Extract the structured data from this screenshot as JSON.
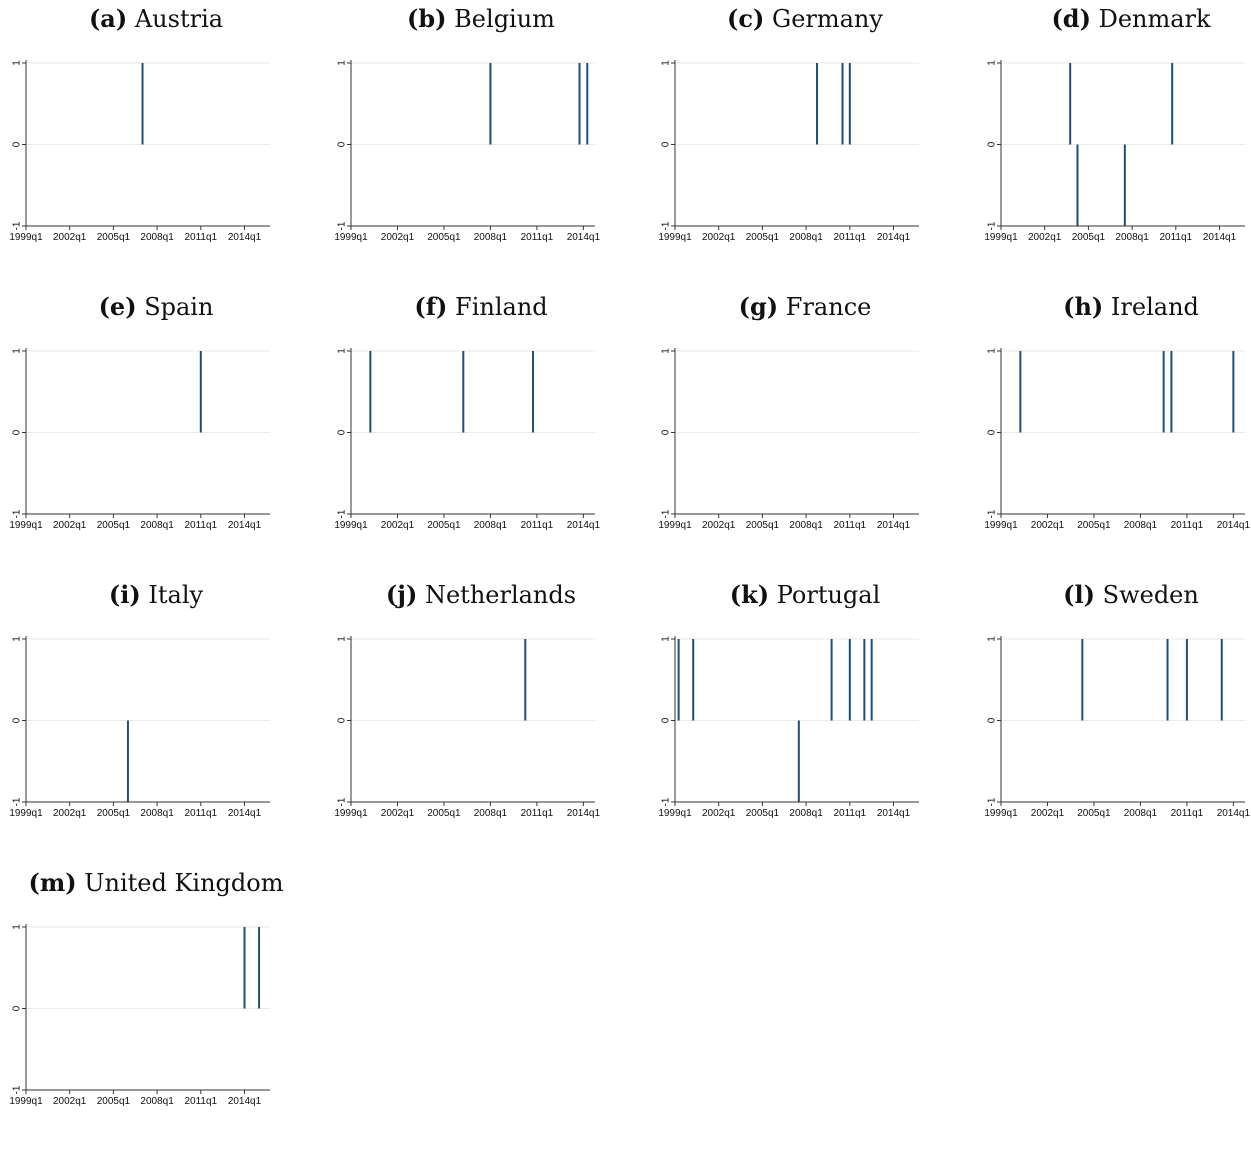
{
  "chart_data": [
    {
      "type": "bar",
      "label": "(a)",
      "title": "Austria",
      "x_ticks": [
        "1999q1",
        "2002q1",
        "2005q1",
        "2008q1",
        "2011q1",
        "2014q1"
      ],
      "y_ticks": [
        "-1",
        "0",
        "1"
      ],
      "ylim": [
        -1,
        1
      ],
      "x_range": [
        "1999q1",
        "2015q4"
      ],
      "events": [
        {
          "x": "2007q1",
          "value": 1
        }
      ]
    },
    {
      "type": "bar",
      "label": "(b)",
      "title": "Belgium",
      "x_ticks": [
        "1999q1",
        "2002q1",
        "2005q1",
        "2008q1",
        "2011q1",
        "2014q1"
      ],
      "y_ticks": [
        "-1",
        "0",
        "1"
      ],
      "ylim": [
        -1,
        1
      ],
      "x_range": [
        "1999q1",
        "2014q4"
      ],
      "events": [
        {
          "x": "2008q1",
          "value": 1
        },
        {
          "x": "2013q4",
          "value": 1
        },
        {
          "x": "2014q2",
          "value": 1
        }
      ]
    },
    {
      "type": "bar",
      "label": "(c)",
      "title": "Germany",
      "x_ticks": [
        "1999q1",
        "2002q1",
        "2005q1",
        "2008q1",
        "2011q1",
        "2014q1"
      ],
      "y_ticks": [
        "-1",
        "0",
        "1"
      ],
      "ylim": [
        -1,
        1
      ],
      "x_range": [
        "1999q1",
        "2015q4"
      ],
      "events": [
        {
          "x": "2008q4",
          "value": 1
        },
        {
          "x": "2010q3",
          "value": 1
        },
        {
          "x": "2011q1",
          "value": 1
        }
      ]
    },
    {
      "type": "bar",
      "label": "(d)",
      "title": "Denmark",
      "x_ticks": [
        "1999q1",
        "2002q1",
        "2005q1",
        "2008q1",
        "2011q1",
        "2014q1"
      ],
      "y_ticks": [
        "-1",
        "0",
        "1"
      ],
      "ylim": [
        -1,
        1
      ],
      "x_range": [
        "1999q1",
        "2015q4"
      ],
      "events": [
        {
          "x": "2003q4",
          "value": 1
        },
        {
          "x": "2004q2",
          "value": -1
        },
        {
          "x": "2007q3",
          "value": -1
        },
        {
          "x": "2010q4",
          "value": 1
        }
      ]
    },
    {
      "type": "bar",
      "label": "(e)",
      "title": "Spain",
      "x_ticks": [
        "1999q1",
        "2002q1",
        "2005q1",
        "2008q1",
        "2011q1",
        "2014q1"
      ],
      "y_ticks": [
        "-1",
        "0",
        "1"
      ],
      "ylim": [
        -1,
        1
      ],
      "x_range": [
        "1999q1",
        "2015q4"
      ],
      "events": [
        {
          "x": "2011q1",
          "value": 1
        }
      ]
    },
    {
      "type": "bar",
      "label": "(f)",
      "title": "Finland",
      "x_ticks": [
        "1999q1",
        "2002q1",
        "2005q1",
        "2008q1",
        "2011q1",
        "2014q1"
      ],
      "y_ticks": [
        "-1",
        "0",
        "1"
      ],
      "ylim": [
        -1,
        1
      ],
      "x_range": [
        "1999q1",
        "2014q4"
      ],
      "events": [
        {
          "x": "2000q2",
          "value": 1
        },
        {
          "x": "2006q2",
          "value": 1
        },
        {
          "x": "2010q4",
          "value": 1
        }
      ]
    },
    {
      "type": "bar",
      "label": "(g)",
      "title": "France",
      "x_ticks": [
        "1999q1",
        "2002q1",
        "2005q1",
        "2008q1",
        "2011q1",
        "2014q1"
      ],
      "y_ticks": [
        "-1",
        "0",
        "1"
      ],
      "ylim": [
        -1,
        1
      ],
      "x_range": [
        "1999q1",
        "2015q4"
      ],
      "events": []
    },
    {
      "type": "bar",
      "label": "(h)",
      "title": "Ireland",
      "x_ticks": [
        "1999q1",
        "2002q1",
        "2005q1",
        "2008q1",
        "2011q1",
        "2014q1"
      ],
      "y_ticks": [
        "-1",
        "0",
        "1"
      ],
      "ylim": [
        -1,
        1
      ],
      "x_range": [
        "1999q1",
        "2014q4"
      ],
      "events": [
        {
          "x": "2000q2",
          "value": 1
        },
        {
          "x": "2009q3",
          "value": 1
        },
        {
          "x": "2010q1",
          "value": 1
        },
        {
          "x": "2014q1",
          "value": 1
        }
      ]
    },
    {
      "type": "bar",
      "label": "(i)",
      "title": "Italy",
      "x_ticks": [
        "1999q1",
        "2002q1",
        "2005q1",
        "2008q1",
        "2011q1",
        "2014q1"
      ],
      "y_ticks": [
        "-1",
        "0",
        "1"
      ],
      "ylim": [
        -1,
        1
      ],
      "x_range": [
        "1999q1",
        "2015q4"
      ],
      "events": [
        {
          "x": "2006q1",
          "value": -1
        }
      ]
    },
    {
      "type": "bar",
      "label": "(j)",
      "title": "Netherlands",
      "x_ticks": [
        "1999q1",
        "2002q1",
        "2005q1",
        "2008q1",
        "2011q1",
        "2014q1"
      ],
      "y_ticks": [
        "-1",
        "0",
        "1"
      ],
      "ylim": [
        -1,
        1
      ],
      "x_range": [
        "1999q1",
        "2014q4"
      ],
      "events": [
        {
          "x": "2010q2",
          "value": 1
        }
      ]
    },
    {
      "type": "bar",
      "label": "(k)",
      "title": "Portugal",
      "x_ticks": [
        "1999q1",
        "2002q1",
        "2005q1",
        "2008q1",
        "2011q1",
        "2014q1"
      ],
      "y_ticks": [
        "-1",
        "0",
        "1"
      ],
      "ylim": [
        -1,
        1
      ],
      "x_range": [
        "1999q1",
        "2015q4"
      ],
      "events": [
        {
          "x": "1999q2",
          "value": 1
        },
        {
          "x": "2000q2",
          "value": 1
        },
        {
          "x": "2007q3",
          "value": -1
        },
        {
          "x": "2009q4",
          "value": 1
        },
        {
          "x": "2011q1",
          "value": 1
        },
        {
          "x": "2012q1",
          "value": 1
        },
        {
          "x": "2012q3",
          "value": 1
        }
      ]
    },
    {
      "type": "bar",
      "label": "(l)",
      "title": "Sweden",
      "x_ticks": [
        "1999q1",
        "2002q1",
        "2005q1",
        "2008q1",
        "2011q1",
        "2014q1"
      ],
      "y_ticks": [
        "-1",
        "0",
        "1"
      ],
      "ylim": [
        -1,
        1
      ],
      "x_range": [
        "1999q1",
        "2014q4"
      ],
      "events": [
        {
          "x": "2004q2",
          "value": 1
        },
        {
          "x": "2009q4",
          "value": 1
        },
        {
          "x": "2011q1",
          "value": 1
        },
        {
          "x": "2013q2",
          "value": 1
        }
      ]
    },
    {
      "type": "bar",
      "label": "(m)",
      "title": "United Kingdom",
      "x_ticks": [
        "1999q1",
        "2002q1",
        "2005q1",
        "2008q1",
        "2011q1",
        "2014q1"
      ],
      "y_ticks": [
        "-1",
        "0",
        "1"
      ],
      "ylim": [
        -1,
        1
      ],
      "x_range": [
        "1999q1",
        "2015q4"
      ],
      "events": [
        {
          "x": "2014q1",
          "value": 1
        },
        {
          "x": "2015q1",
          "value": 1
        }
      ]
    }
  ],
  "colors": {
    "bar": "#1f4e79",
    "axis": "#333333",
    "grid": "#eaeaea",
    "text": "#111111"
  }
}
